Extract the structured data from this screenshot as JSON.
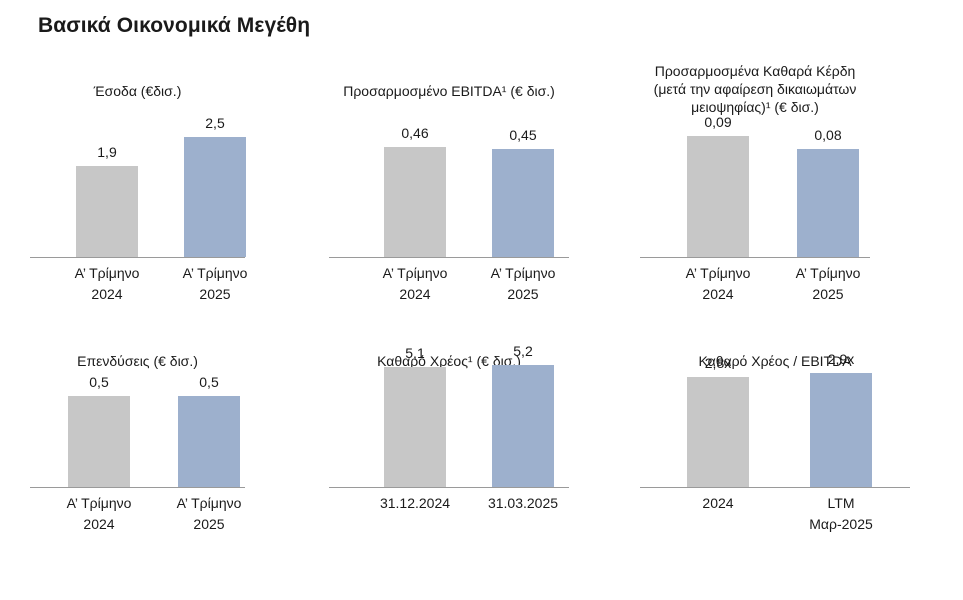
{
  "page_title": "Βασικά Οικονομικά Μεγέθη",
  "colors": {
    "bar_2024": "#c7c7c7",
    "bar_2025": "#9db0cd",
    "axis": "#9a9a9a"
  },
  "chart_data": [
    {
      "type": "bar",
      "title": "Έσοδα (€δισ.)",
      "categories": [
        "Α’ Τρίμηνο\n2024",
        "Α’ Τρίμηνο\n2025"
      ],
      "values": [
        1.9,
        2.5
      ],
      "labels": [
        "1,9",
        "2,5"
      ],
      "ylim": [
        0,
        2.8
      ]
    },
    {
      "type": "bar",
      "title": "Προσαρμοσμένο EBITDA¹ (€ δισ.)",
      "categories": [
        "Α’ Τρίμηνο\n2024",
        "Α’ Τρίμηνο\n2025"
      ],
      "values": [
        0.46,
        0.45
      ],
      "labels": [
        "0,46",
        "0,45"
      ],
      "ylim": [
        0,
        0.5
      ]
    },
    {
      "type": "bar",
      "title": "Προσαρμοσμένα Καθαρά Κέρδη\n(μετά την αφαίρεση δικαιωμάτων\nμειοψηφίας)¹ (€ δισ.)",
      "categories": [
        "Α’ Τρίμηνο\n2024",
        "Α’ Τρίμηνο\n2025"
      ],
      "values": [
        0.09,
        0.08
      ],
      "labels": [
        "0,09",
        "0,08"
      ],
      "ylim": [
        0,
        0.1
      ]
    },
    {
      "type": "bar",
      "title": "Επενδύσεις (€ δισ.)",
      "categories": [
        "Α’ Τρίμηνο\n2024",
        "Α’ Τρίμηνο\n2025"
      ],
      "values": [
        0.5,
        0.5
      ],
      "labels": [
        "0,5",
        "0,5"
      ],
      "ylim": [
        0,
        0.55
      ]
    },
    {
      "type": "bar",
      "title": "Καθαρό Χρέος¹ (€ δισ.)",
      "categories": [
        "31.12.2024",
        "31.03.2025"
      ],
      "values": [
        5.1,
        5.2
      ],
      "labels": [
        "5,1",
        "5,2"
      ],
      "ylim": [
        0,
        5.8
      ]
    },
    {
      "type": "bar",
      "title": "Καθαρό Χρέος / EBITDA",
      "categories": [
        "2024",
        "LTM\nΜαρ-2025"
      ],
      "values": [
        2.8,
        2.9
      ],
      "labels": [
        "2,8x",
        "2,9x"
      ],
      "ylim": [
        0,
        4.4
      ]
    }
  ]
}
